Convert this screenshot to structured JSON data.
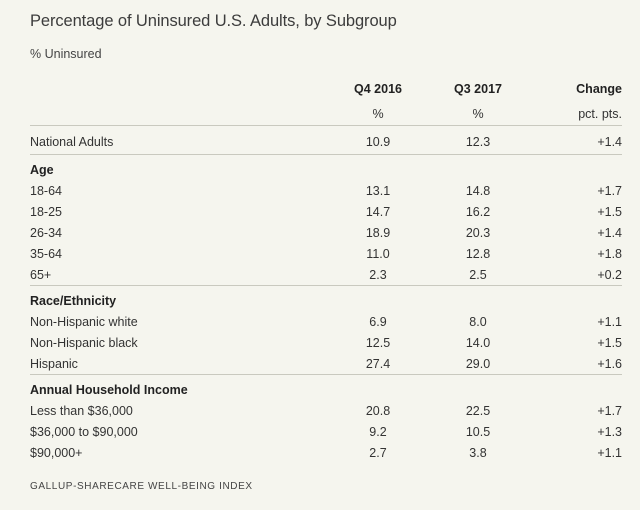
{
  "title": "Percentage of Uninsured U.S. Adults, by Subgroup",
  "subtitle": "% Uninsured",
  "columns": [
    {
      "header": "Q4 2016",
      "unit": "%"
    },
    {
      "header": "Q3 2017",
      "unit": "%"
    },
    {
      "header": "Change",
      "unit": "pct. pts."
    }
  ],
  "national": {
    "label": "National Adults",
    "q4_2016": "10.9",
    "q3_2017": "12.3",
    "change": "+1.4"
  },
  "sections": [
    {
      "name": "Age",
      "rows": [
        {
          "label": "18-64",
          "q4_2016": "13.1",
          "q3_2017": "14.8",
          "change": "+1.7"
        },
        {
          "label": "18-25",
          "q4_2016": "14.7",
          "q3_2017": "16.2",
          "change": "+1.5"
        },
        {
          "label": "26-34",
          "q4_2016": "18.9",
          "q3_2017": "20.3",
          "change": "+1.4"
        },
        {
          "label": "35-64",
          "q4_2016": "11.0",
          "q3_2017": "12.8",
          "change": "+1.8"
        },
        {
          "label": "65+",
          "q4_2016": "2.3",
          "q3_2017": "2.5",
          "change": "+0.2"
        }
      ]
    },
    {
      "name": "Race/Ethnicity",
      "rows": [
        {
          "label": "Non-Hispanic white",
          "q4_2016": "6.9",
          "q3_2017": "8.0",
          "change": "+1.1"
        },
        {
          "label": "Non-Hispanic black",
          "q4_2016": "12.5",
          "q3_2017": "14.0",
          "change": "+1.5"
        },
        {
          "label": "Hispanic",
          "q4_2016": "27.4",
          "q3_2017": "29.0",
          "change": "+1.6"
        }
      ]
    },
    {
      "name": "Annual Household Income",
      "rows": [
        {
          "label": "Less than $36,000",
          "q4_2016": "20.8",
          "q3_2017": "22.5",
          "change": "+1.7"
        },
        {
          "label": "$36,000 to $90,000",
          "q4_2016": "9.2",
          "q3_2017": "10.5",
          "change": "+1.3"
        },
        {
          "label": "$90,000+",
          "q4_2016": "2.7",
          "q3_2017": "3.8",
          "change": "+1.1"
        }
      ]
    }
  ],
  "source": "GALLUP-SHARECARE WELL-BEING INDEX"
}
